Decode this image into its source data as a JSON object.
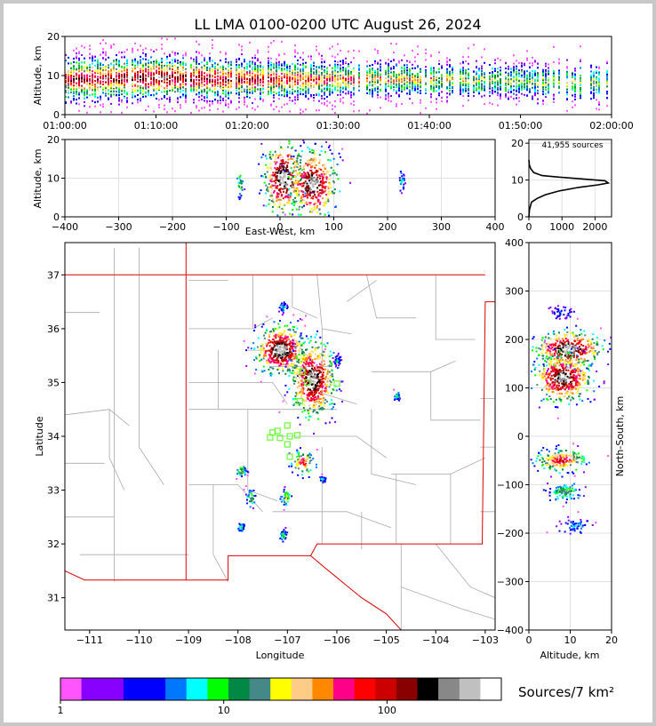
{
  "title": "LL LMA 0100-0200 UTC August 26, 2024",
  "colors": {
    "frame": "#c8c8c8",
    "state_border": "#dd0000",
    "county_lines": "#aaaaaa",
    "station_marker": "#66ff33",
    "profile_line": "#000000"
  },
  "colorbar": {
    "colors": [
      "#ff55ff",
      "#8800ff",
      "#8800ff",
      "#0000ff",
      "#0000ff",
      "#0077ff",
      "#00ffff",
      "#00ff00",
      "#008844",
      "#448888",
      "#ffff00",
      "#ffcc88",
      "#ff8800",
      "#ff0088",
      "#ff0000",
      "#cc0000",
      "#880000",
      "#000000",
      "#888888",
      "#c0c0c0",
      "#ffffff"
    ],
    "tick_labels": [
      "1",
      "10",
      "100"
    ],
    "unit_label": "Sources/7 km²"
  },
  "chart_data": [
    {
      "name": "time-altitude",
      "type": "heatmap",
      "xlabel": "",
      "ylabel": "Altitude, km",
      "x_tick_labels": [
        "01:00:00",
        "01:10:00",
        "01:20:00",
        "01:30:00",
        "01:40:00",
        "01:50:00",
        "02:00:00"
      ],
      "xlim_minutes": [
        0,
        60
      ],
      "ylim": [
        0,
        20
      ],
      "y_ticks": [
        0,
        10,
        20
      ],
      "activity": [
        {
          "t": 0,
          "alt_center": 9,
          "alt_spread": 3.5,
          "density": 0.9
        },
        {
          "t": 10,
          "alt_center": 9.5,
          "alt_spread": 3.5,
          "density": 1.0
        },
        {
          "t": 20,
          "alt_center": 9,
          "alt_spread": 3.2,
          "density": 0.9
        },
        {
          "t": 30,
          "alt_center": 9,
          "alt_spread": 2.8,
          "density": 0.7
        },
        {
          "t": 40,
          "alt_center": 9,
          "alt_spread": 2.5,
          "density": 0.6
        },
        {
          "t": 50,
          "alt_center": 8.5,
          "alt_spread": 2.5,
          "density": 0.5
        },
        {
          "t": 60,
          "alt_center": 8,
          "alt_spread": 2.5,
          "density": 0.5
        }
      ]
    },
    {
      "name": "east-west-altitude",
      "type": "heatmap",
      "xlabel": "East-West, km",
      "ylabel": "Altitude, km",
      "xlim": [
        -400,
        400
      ],
      "x_ticks": [
        -400,
        -300,
        -200,
        -100,
        0,
        100,
        200,
        300,
        400
      ],
      "ylim": [
        0,
        20
      ],
      "y_ticks": [
        0,
        10,
        20
      ],
      "cells": [
        {
          "x": 5,
          "alt": 10,
          "sx": 18,
          "salt": 4.5,
          "peak": 1.0
        },
        {
          "x": 60,
          "alt": 8.5,
          "sx": 22,
          "salt": 4.5,
          "peak": 0.95
        },
        {
          "x": -75,
          "alt": 8.5,
          "sx": 3,
          "salt": 2,
          "peak": 0.45
        },
        {
          "x": 225,
          "alt": 9,
          "sx": 3,
          "salt": 1.5,
          "peak": 0.3
        }
      ]
    },
    {
      "name": "altitude-histogram",
      "type": "line",
      "annotation": "41,955 sources",
      "xlim": [
        0,
        2500
      ],
      "x_ticks": [
        0,
        1000,
        2000
      ],
      "x_tick_labels": [
        "0",
        "1000",
        "2000"
      ],
      "ylim": [
        0,
        21
      ],
      "y_ticks": [
        0,
        10,
        20
      ],
      "profile": [
        [
          0,
          0
        ],
        [
          20,
          2
        ],
        [
          80,
          4
        ],
        [
          250,
          5
        ],
        [
          500,
          6
        ],
        [
          900,
          7
        ],
        [
          1500,
          8
        ],
        [
          2100,
          8.7
        ],
        [
          2400,
          9.2
        ],
        [
          2300,
          9.8
        ],
        [
          1600,
          10.3
        ],
        [
          900,
          10.8
        ],
        [
          400,
          11.2
        ],
        [
          150,
          12
        ],
        [
          60,
          13
        ],
        [
          15,
          14
        ],
        [
          0,
          15.5
        ]
      ]
    },
    {
      "name": "plan-view",
      "type": "heatmap",
      "xlabel": "Longitude",
      "ylabel": "Latitude",
      "xlim": [
        -111.5,
        -102.8
      ],
      "x_ticks": [
        -111,
        -110,
        -109,
        -108,
        -107,
        -106,
        -105,
        -104,
        -103
      ],
      "ylim": [
        30.4,
        37.6
      ],
      "y_ticks": [
        31,
        32,
        33,
        34,
        35,
        36,
        37
      ],
      "storms": [
        {
          "lon": -107.15,
          "lat": 35.6,
          "slon": 0.25,
          "slat": 0.22,
          "peak": 1.0
        },
        {
          "lon": -106.5,
          "lat": 35.05,
          "slon": 0.22,
          "slat": 0.35,
          "peak": 0.95
        },
        {
          "lon": -106.7,
          "lat": 33.5,
          "slon": 0.12,
          "slat": 0.12,
          "peak": 0.7
        },
        {
          "lon": -107.95,
          "lat": 33.35,
          "slon": 0.05,
          "slat": 0.05,
          "peak": 0.5
        },
        {
          "lon": -107.75,
          "lat": 32.85,
          "slon": 0.05,
          "slat": 0.08,
          "peak": 0.45
        },
        {
          "lon": -107.05,
          "lat": 32.85,
          "slon": 0.05,
          "slat": 0.08,
          "peak": 0.5
        },
        {
          "lon": -107.95,
          "lat": 32.3,
          "slon": 0.04,
          "slat": 0.05,
          "peak": 0.35
        },
        {
          "lon": -107.1,
          "lat": 32.15,
          "slon": 0.04,
          "slat": 0.06,
          "peak": 0.35
        },
        {
          "lon": -107.1,
          "lat": 36.4,
          "slon": 0.04,
          "slat": 0.05,
          "peak": 0.3
        },
        {
          "lon": -106.0,
          "lat": 35.4,
          "slon": 0.04,
          "slat": 0.04,
          "peak": 0.3
        },
        {
          "lon": -104.8,
          "lat": 34.75,
          "slon": 0.03,
          "slat": 0.05,
          "peak": 0.35
        },
        {
          "lon": -106.3,
          "lat": 33.2,
          "slon": 0.03,
          "slat": 0.03,
          "peak": 0.3
        }
      ],
      "stations": [
        [
          -106.7,
          35.2
        ],
        [
          -106.0,
          34.98
        ],
        [
          -106.75,
          34.65
        ],
        [
          -107.0,
          34.2
        ],
        [
          -107.3,
          34.07
        ],
        [
          -107.35,
          33.98
        ],
        [
          -107.15,
          33.97
        ],
        [
          -106.95,
          34.0
        ],
        [
          -106.8,
          34.02
        ],
        [
          -107.0,
          33.85
        ],
        [
          -106.95,
          33.62
        ],
        [
          -107.2,
          34.1
        ],
        [
          -106.6,
          35.0
        ]
      ]
    },
    {
      "name": "altitude-north-south",
      "type": "heatmap",
      "xlabel": "Altitude, km",
      "ylabel": "North-South, km",
      "xlim": [
        0,
        20
      ],
      "x_ticks": [
        0,
        10,
        20
      ],
      "ylim": [
        -400,
        400
      ],
      "y_ticks": [
        -400,
        -300,
        -200,
        -100,
        0,
        100,
        200,
        300,
        400
      ],
      "cells": [
        {
          "ns": 180,
          "alt": 9.5,
          "sns": 18,
          "salt": 4,
          "peak": 1.0
        },
        {
          "ns": 120,
          "alt": 8,
          "sns": 25,
          "salt": 3.5,
          "peak": 0.95
        },
        {
          "ns": -50,
          "alt": 7.5,
          "sns": 12,
          "salt": 3,
          "peak": 0.75
        },
        {
          "ns": -115,
          "alt": 8.5,
          "sns": 10,
          "salt": 2,
          "peak": 0.45
        },
        {
          "ns": -185,
          "alt": 11,
          "sns": 8,
          "salt": 2,
          "peak": 0.25
        },
        {
          "ns": 255,
          "alt": 8,
          "sns": 6,
          "salt": 1.5,
          "peak": 0.2
        }
      ]
    }
  ]
}
